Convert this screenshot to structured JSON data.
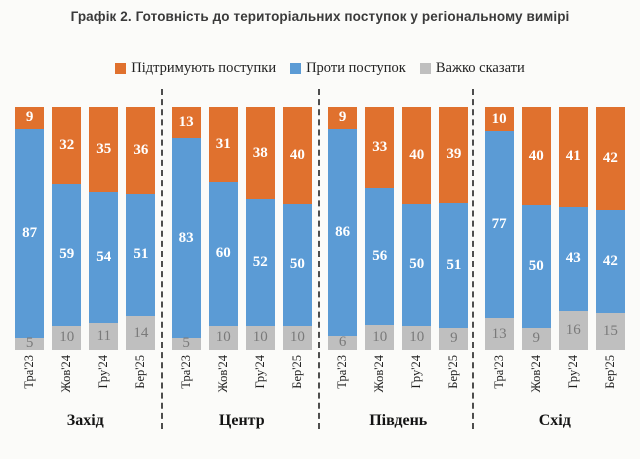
{
  "title": "Графік 2. Готовність до територіальних поступок у регіональному вимірі",
  "legend": [
    {
      "label": "Підтримують поступки",
      "color": "#e0712e"
    },
    {
      "label": "Проти поступок",
      "color": "#5b9bd5"
    },
    {
      "label": "Важко сказати",
      "color": "#bfbfbf"
    }
  ],
  "chart_data": {
    "type": "bar",
    "subtype": "stacked-100-percent-column",
    "title": "Графік 2. Готовність до територіальних поступок у регіональному вимірі",
    "xlabel": "",
    "ylabel": "",
    "ylim": [
      0,
      100
    ],
    "grid": false,
    "axes_visible": false,
    "legend_position": "top-center",
    "value_labels_shown": true,
    "separator_style": "vertical dashed lines between groups",
    "series": [
      {
        "key": "support",
        "name": "Підтримують поступки",
        "color": "#e0712e",
        "label_color": "#ffffff"
      },
      {
        "key": "against",
        "name": "Проти поступок",
        "color": "#5b9bd5",
        "label_color": "#ffffff"
      },
      {
        "key": "hard",
        "name": "Важко сказати",
        "color": "#bfbfbf",
        "label_color": "#7a7a7a"
      }
    ],
    "series_stack_order_top_to_bottom": [
      "Підтримують поступки",
      "Проти поступок",
      "Важко сказати"
    ],
    "groups": [
      {
        "label": "Захід",
        "bars": [
          {
            "category": "Тра'23",
            "values": [
              9,
              87,
              5
            ]
          },
          {
            "category": "Жов'24",
            "values": [
              32,
              59,
              10
            ]
          },
          {
            "category": "Гру'24",
            "values": [
              35,
              54,
              11
            ]
          },
          {
            "category": "Бер'25",
            "values": [
              36,
              51,
              14
            ]
          }
        ]
      },
      {
        "label": "Центр",
        "bars": [
          {
            "category": "Тра'23",
            "values": [
              13,
              83,
              5
            ]
          },
          {
            "category": "Жов'24",
            "values": [
              31,
              60,
              10
            ]
          },
          {
            "category": "Гру'24",
            "values": [
              38,
              52,
              10
            ]
          },
          {
            "category": "Бер'25",
            "values": [
              40,
              50,
              10
            ]
          }
        ]
      },
      {
        "label": "Південь",
        "bars": [
          {
            "category": "Тра'23",
            "values": [
              9,
              86,
              6
            ]
          },
          {
            "category": "Жов'24",
            "values": [
              33,
              56,
              10
            ]
          },
          {
            "category": "Гру'24",
            "values": [
              40,
              50,
              10
            ]
          },
          {
            "category": "Бер'25",
            "values": [
              39,
              51,
              9
            ]
          }
        ]
      },
      {
        "label": "Схід",
        "bars": [
          {
            "category": "Тра'23",
            "values": [
              10,
              77,
              13
            ]
          },
          {
            "category": "Жов'24",
            "values": [
              40,
              50,
              9
            ]
          },
          {
            "category": "Гру'24",
            "values": [
              41,
              43,
              16
            ]
          },
          {
            "category": "Бер'25",
            "values": [
              42,
              42,
              15
            ]
          }
        ]
      }
    ]
  }
}
